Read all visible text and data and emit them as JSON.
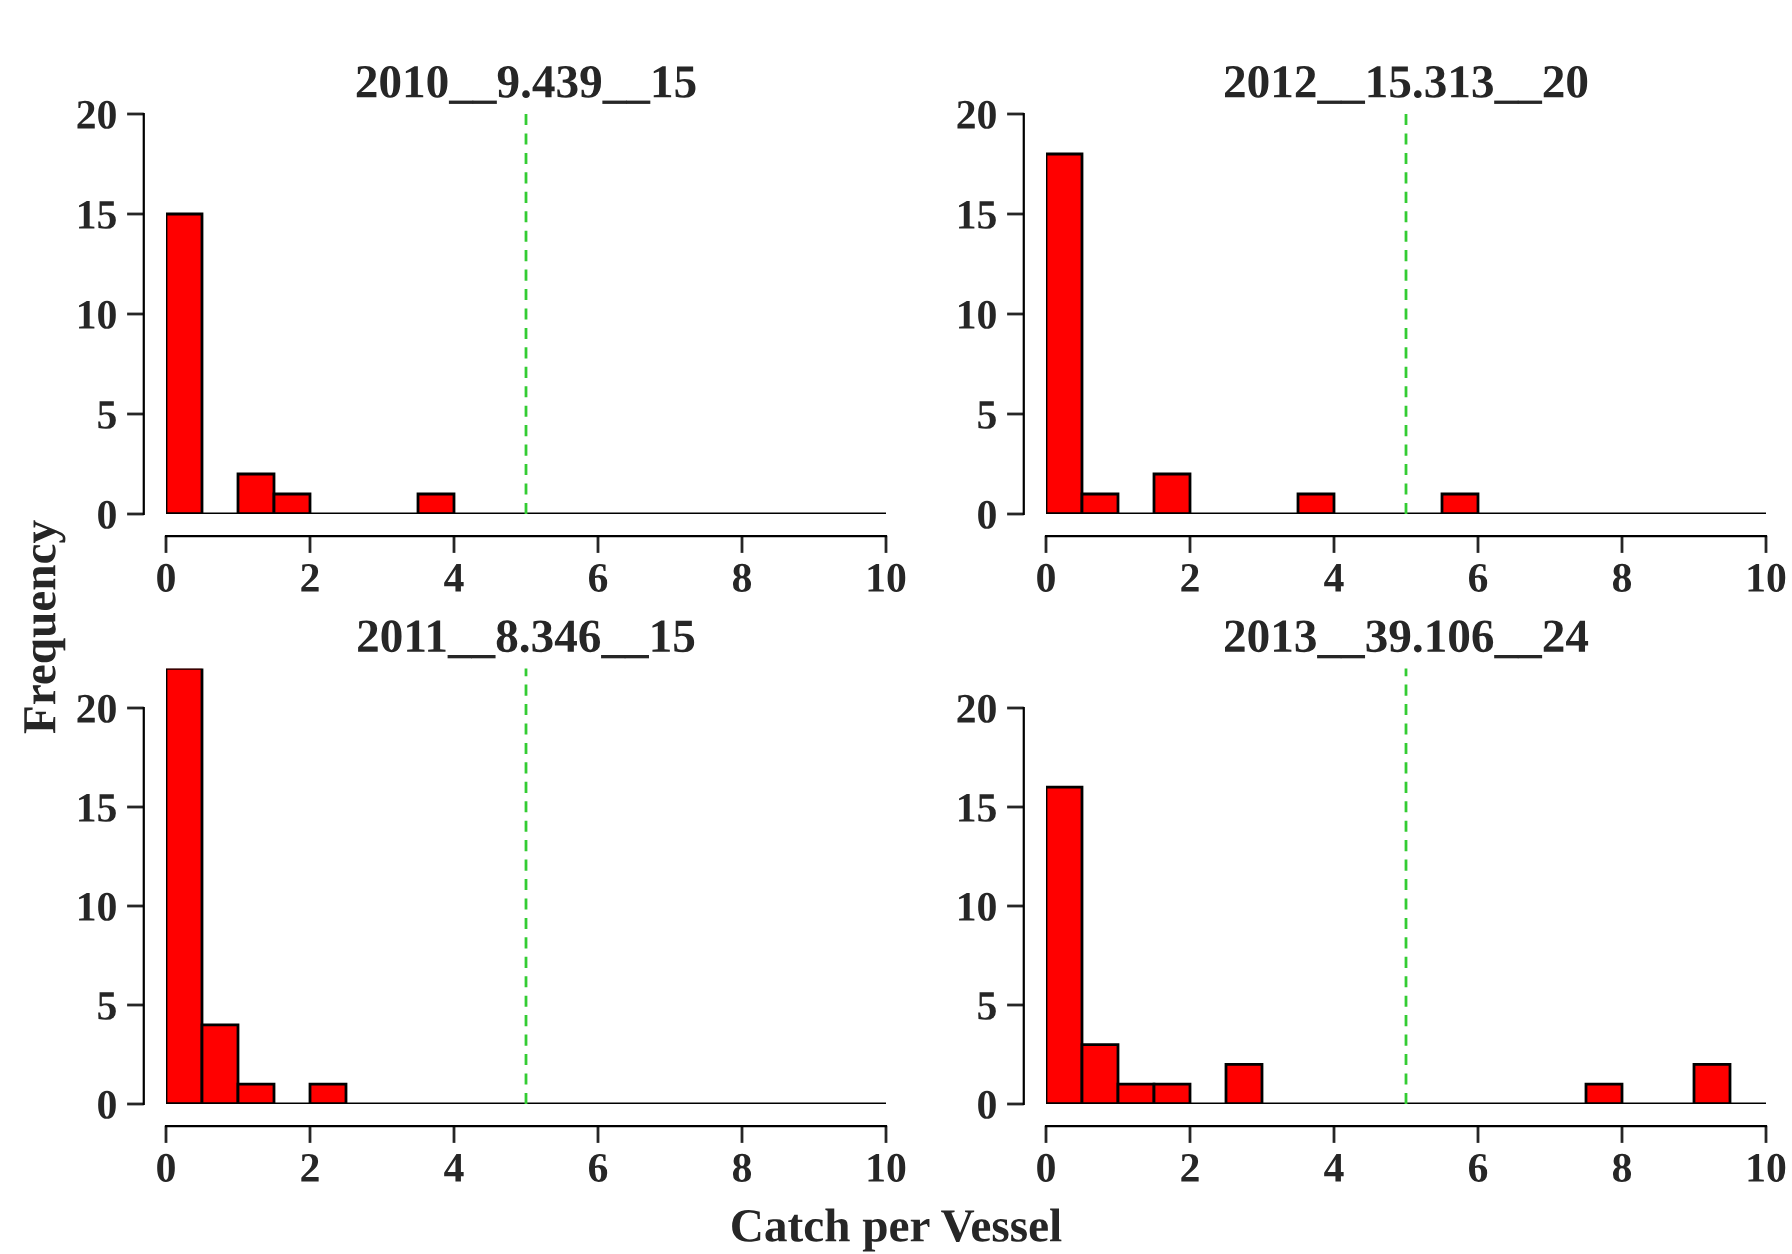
{
  "chart_data": [
    {
      "type": "histogram",
      "title": "2010__9.439__15",
      "ylabel": "Frequency",
      "bins": [
        0,
        0.5,
        1,
        1.5,
        2,
        2.5,
        3,
        3.5,
        4,
        4.5,
        5,
        5.5,
        6,
        6.5,
        7,
        7.5,
        8,
        8.5,
        9,
        9.5,
        10
      ],
      "values": [
        15,
        0,
        2,
        1,
        0,
        0,
        0,
        1,
        0,
        0,
        0,
        0,
        0,
        0,
        0,
        0,
        0,
        0,
        0,
        0
      ],
      "color": "#ff0000",
      "xlim": [
        0,
        10
      ],
      "xticks": [
        0,
        2,
        4,
        6,
        8,
        10
      ],
      "ylim": [
        0,
        20
      ],
      "yticks": [
        0,
        5,
        10,
        15,
        20
      ],
      "ref_lines": [
        {
          "axis": "x",
          "value": 5,
          "color": "#33cc33",
          "line_style": "dashed"
        }
      ]
    },
    {
      "type": "histogram",
      "title": "2011__8.346__15",
      "bins": [
        0,
        0.5,
        1,
        1.5,
        2,
        2.5,
        3,
        3.5,
        4,
        4.5,
        5,
        5.5,
        6,
        6.5,
        7,
        7.5,
        8,
        8.5,
        9,
        9.5,
        10
      ],
      "values": [
        22,
        4,
        1,
        0,
        1,
        0,
        0,
        0,
        0,
        0,
        0,
        0,
        0,
        0,
        0,
        0,
        0,
        0,
        0,
        0
      ],
      "color": "#ff0000",
      "xlim": [
        0,
        10
      ],
      "xticks": [
        0,
        2,
        4,
        6,
        8,
        10
      ],
      "ylim": [
        0,
        22
      ],
      "yticks": [
        0,
        5,
        10,
        15,
        20
      ],
      "ref_lines": [
        {
          "axis": "x",
          "value": 5,
          "color": "#33cc33",
          "line_style": "dashed"
        }
      ]
    },
    {
      "type": "histogram",
      "title": "2012__15.313__20",
      "bins": [
        0,
        0.5,
        1,
        1.5,
        2,
        2.5,
        3,
        3.5,
        4,
        4.5,
        5,
        5.5,
        6,
        6.5,
        7,
        7.5,
        8,
        8.5,
        9,
        9.5,
        10
      ],
      "values": [
        18,
        1,
        0,
        2,
        0,
        0,
        0,
        1,
        0,
        0,
        0,
        1,
        0,
        0,
        0,
        0,
        0,
        0,
        0,
        0
      ],
      "color": "#ff0000",
      "xlim": [
        0,
        10
      ],
      "xticks": [
        0,
        2,
        4,
        6,
        8,
        10
      ],
      "ylim": [
        0,
        20
      ],
      "yticks": [
        0,
        5,
        10,
        15,
        20
      ],
      "ref_lines": [
        {
          "axis": "x",
          "value": 5,
          "color": "#33cc33",
          "line_style": "dashed"
        }
      ]
    },
    {
      "type": "histogram",
      "title": "2013__39.106__24",
      "xlabel": "Catch per Vessel",
      "bins": [
        0,
        0.5,
        1,
        1.5,
        2,
        2.5,
        3,
        3.5,
        4,
        4.5,
        5,
        5.5,
        6,
        6.5,
        7,
        7.5,
        8,
        8.5,
        9,
        9.5,
        10
      ],
      "values": [
        16,
        3,
        1,
        1,
        0,
        2,
        0,
        0,
        0,
        0,
        0,
        0,
        0,
        0,
        0,
        1,
        0,
        0,
        2,
        0
      ],
      "color": "#ff0000",
      "xlim": [
        0,
        10
      ],
      "xticks": [
        0,
        2,
        4,
        6,
        8,
        10
      ],
      "ylim": [
        0,
        22
      ],
      "yticks": [
        0,
        5,
        10,
        15,
        20
      ],
      "ref_lines": [
        {
          "axis": "x",
          "value": 5,
          "color": "#33cc33",
          "line_style": "dashed"
        }
      ]
    }
  ]
}
